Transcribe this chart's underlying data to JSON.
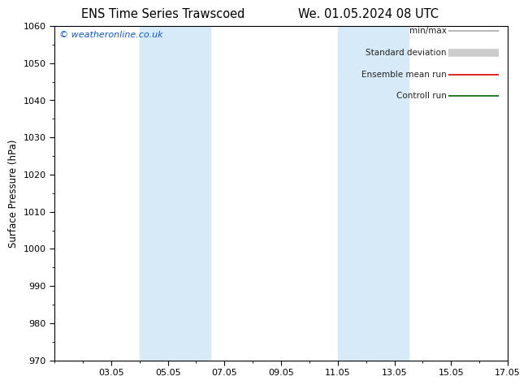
{
  "title_left": "ENS Time Series Trawscoed",
  "title_right": "We. 01.05.2024 08 UTC",
  "ylabel": "Surface Pressure (hPa)",
  "ylim": [
    970,
    1060
  ],
  "yticks": [
    970,
    980,
    990,
    1000,
    1010,
    1020,
    1030,
    1040,
    1050,
    1060
  ],
  "xlim": [
    0,
    16
  ],
  "xtick_labels": [
    "03.05",
    "05.05",
    "07.05",
    "09.05",
    "11.05",
    "13.05",
    "15.05",
    "17.05"
  ],
  "xtick_positions": [
    2,
    4,
    6,
    8,
    10,
    12,
    14,
    16
  ],
  "shaded_regions": [
    {
      "xmin": 3.0,
      "xmax": 5.5,
      "color": "#d6eaf8"
    },
    {
      "xmin": 10.0,
      "xmax": 12.5,
      "color": "#d6eaf8"
    }
  ],
  "watermark": "© weatheronline.co.uk",
  "legend_items": [
    {
      "label": "min/max",
      "color": "#aaaaaa",
      "lw": 1.2
    },
    {
      "label": "Standard deviation",
      "color": "#cccccc",
      "lw": 7
    },
    {
      "label": "Ensemble mean run",
      "color": "#dd0000",
      "lw": 1.2
    },
    {
      "label": "Controll run",
      "color": "#006600",
      "lw": 1.2
    }
  ],
  "background_color": "#ffffff",
  "plot_bg_color": "#ffffff",
  "border_color": "#000000",
  "title_fontsize": 10.5,
  "axis_label_fontsize": 8.5,
  "tick_fontsize": 8,
  "legend_fontsize": 7.5,
  "watermark_fontsize": 8
}
